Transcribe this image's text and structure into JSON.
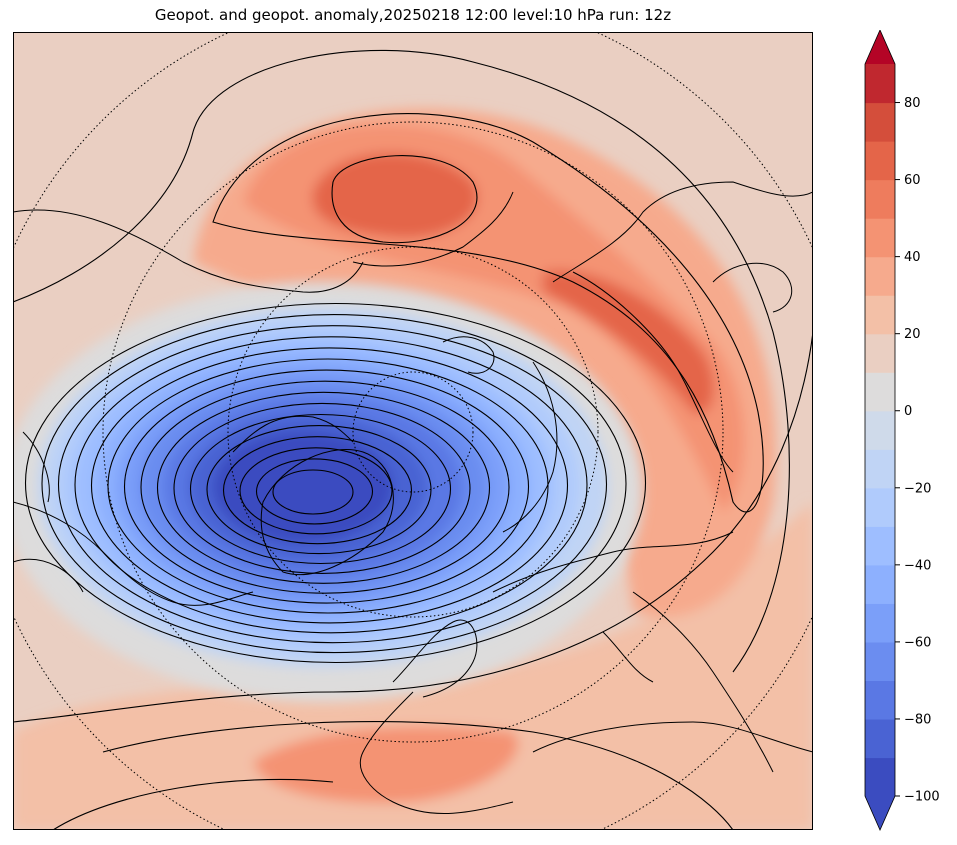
{
  "title": "Geopot. and geopot. anomaly,20250218 12:00 level:10 hPa run: 12z",
  "colorbar": {
    "min": -100,
    "max": 90,
    "step": 10,
    "extend": "both",
    "tick_labels": [
      "80",
      "60",
      "40",
      "20",
      "0",
      "−20",
      "−40",
      "−60",
      "−80",
      "−100"
    ],
    "tick_values": [
      80,
      60,
      40,
      20,
      0,
      -20,
      -40,
      -60,
      -80,
      -100
    ],
    "colors": [
      "#3b4cc0",
      "#4a63d3",
      "#5a78e4",
      "#6b8df0",
      "#7b9ff9",
      "#8db0fe",
      "#9ebeff",
      "#b0cbfc",
      "#c0d4f5",
      "#cfdaea",
      "#dddcdc",
      "#eacfc2",
      "#f3c0a7",
      "#f6aa8d",
      "#f49373",
      "#ee7c5d",
      "#e46549",
      "#d44e3b",
      "#c0282f",
      "#b40426",
      "#b40426"
    ]
  },
  "map": {
    "projection": "north-polar-stereographic",
    "colors": {
      "deep_negative": "#3b4cc0",
      "negative": "#6b8df0",
      "near_zero": "#dddcdc",
      "positive": "#f49373",
      "strong_positive": "#d44e3b",
      "coastline": "#000000",
      "contour": "#000000"
    }
  }
}
